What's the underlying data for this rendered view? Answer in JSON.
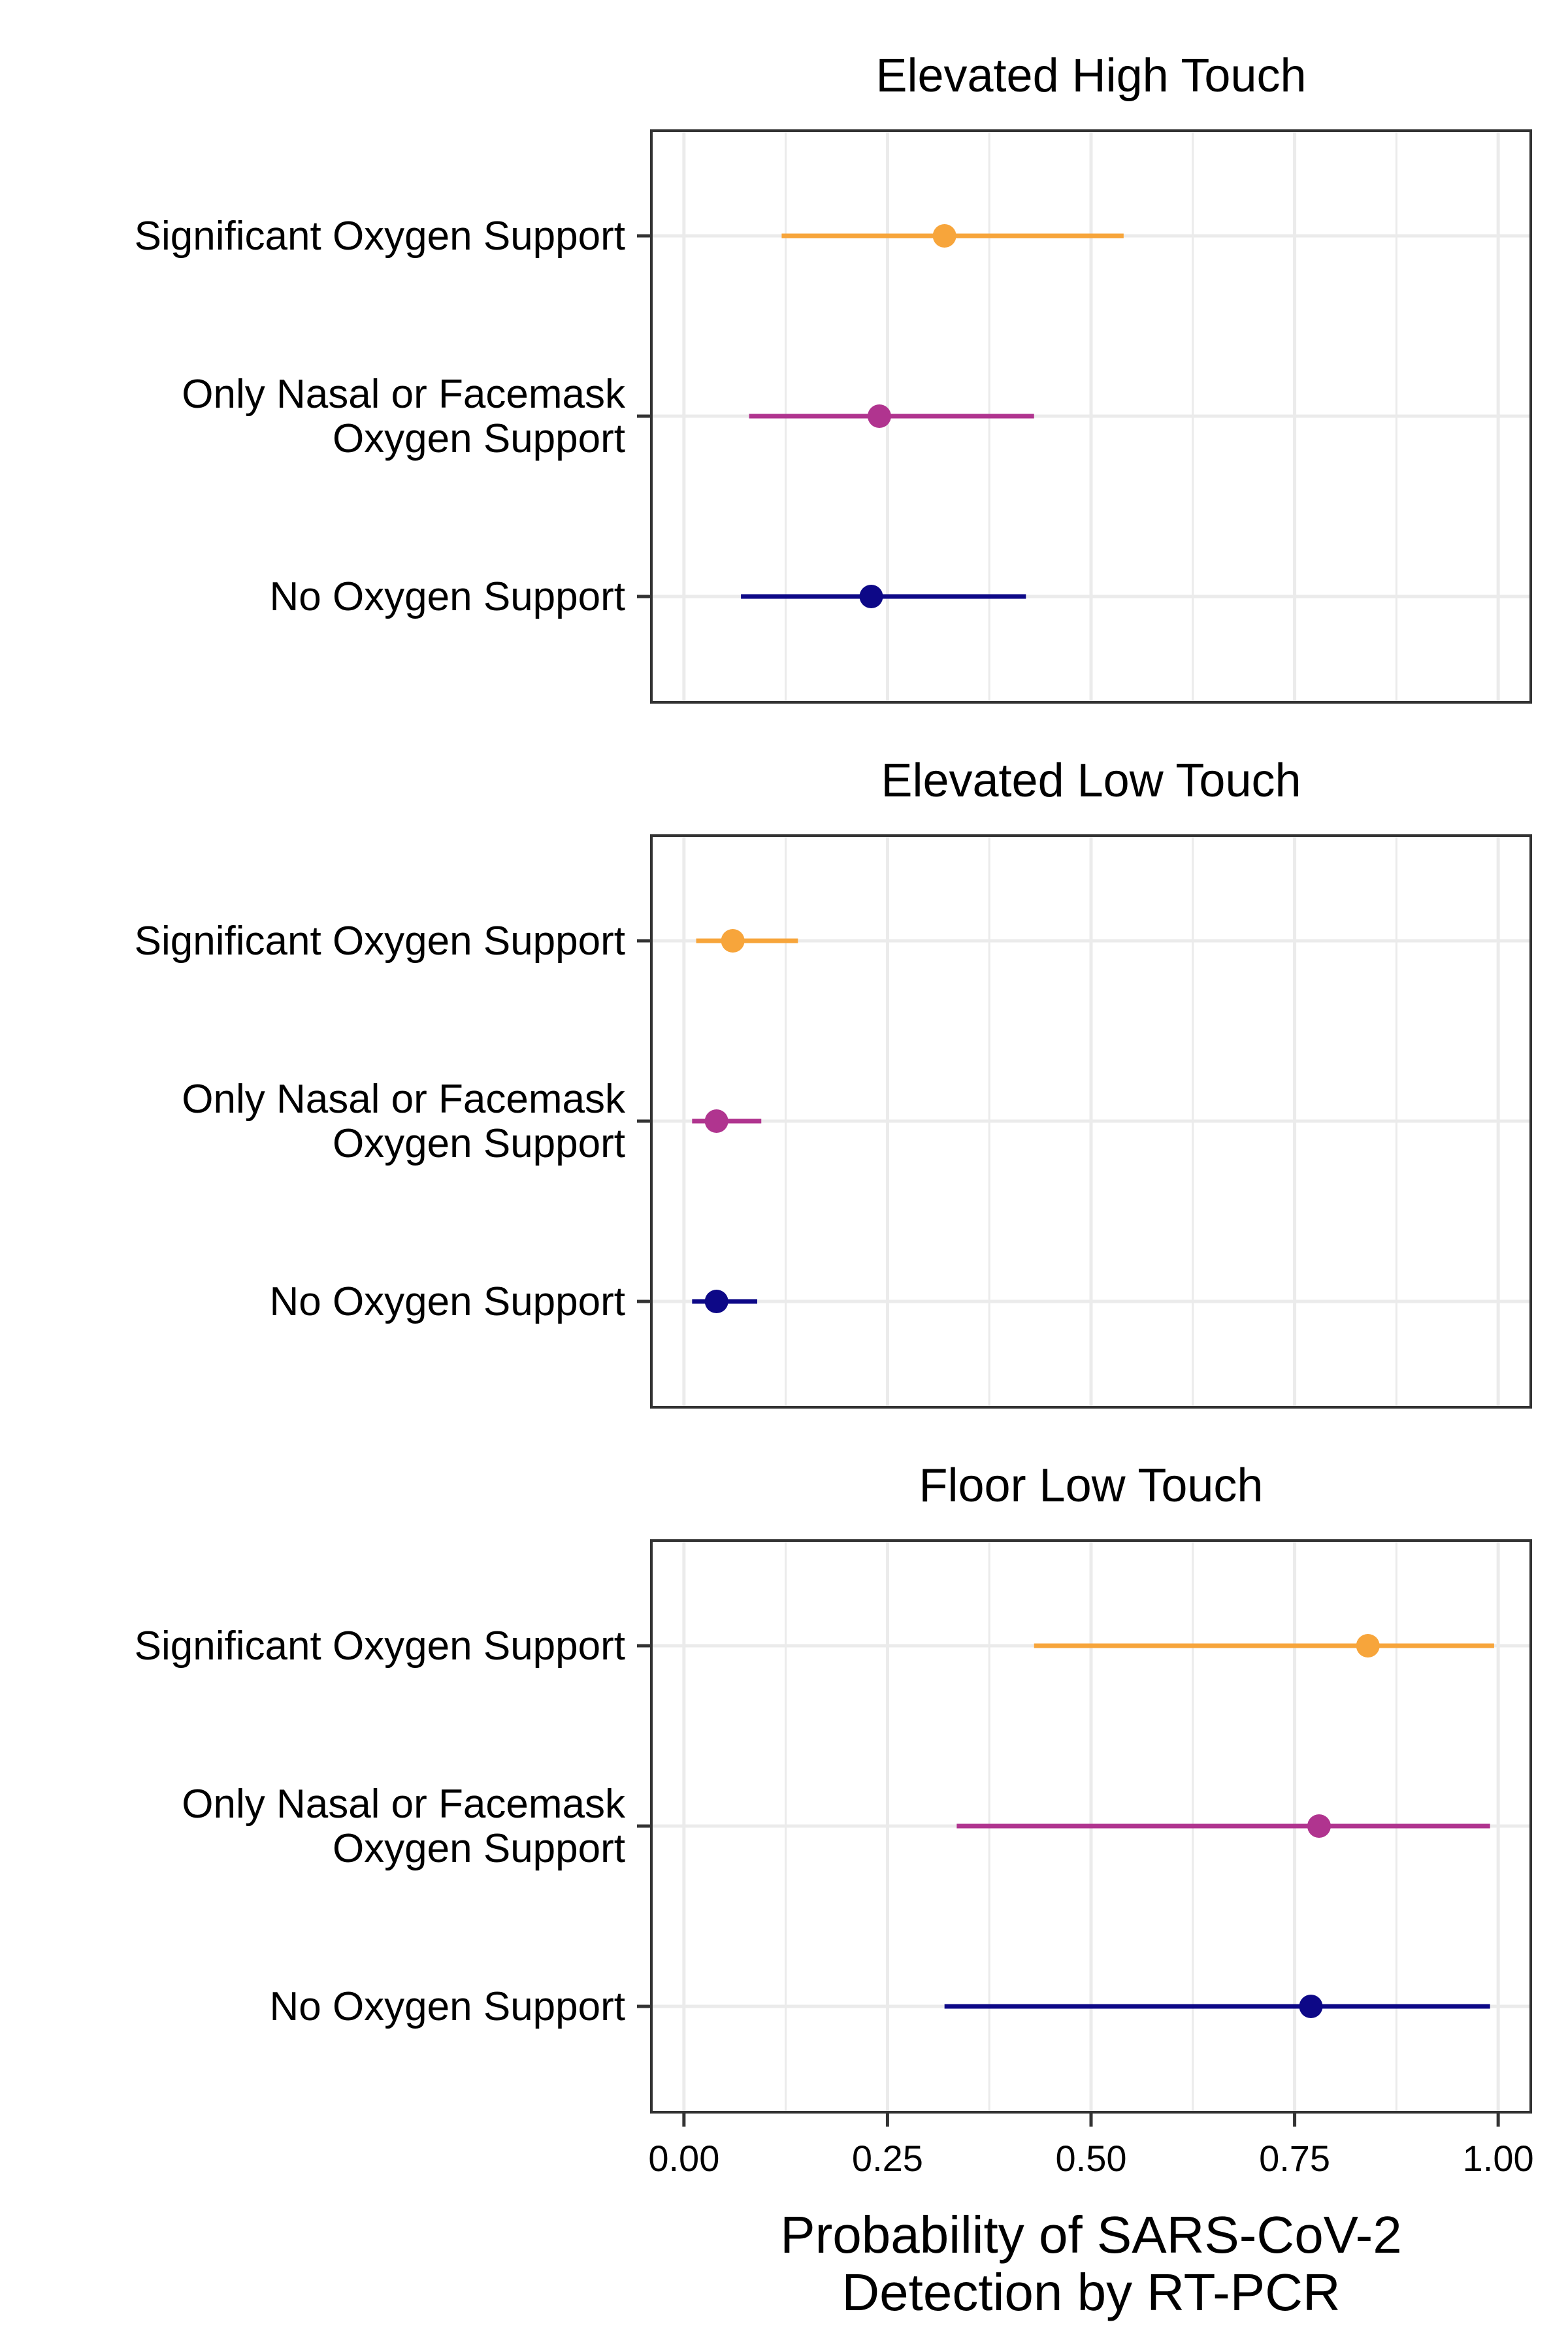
{
  "chart_data": {
    "type": "forest",
    "xlabel_lines": [
      "Probability of SARS-CoV-2",
      "Detection by RT-PCR"
    ],
    "xlim": [
      -0.04,
      1.04
    ],
    "xticks": [
      0,
      0.25,
      0.5,
      0.75,
      1
    ],
    "xtick_labels": [
      "0.00",
      "0.25",
      "0.50",
      "0.75",
      "1.00"
    ],
    "grid": true,
    "categories": [
      {
        "lines": [
          "Significant Oxygen Support"
        ],
        "color": "#f7a53b"
      },
      {
        "lines": [
          "Only Nasal or Facemask",
          "Oxygen Support"
        ],
        "color": "#b0348f"
      },
      {
        "lines": [
          "No Oxygen Support"
        ],
        "color": "#0d0887"
      }
    ],
    "panels": [
      {
        "title": "Elevated High Touch",
        "points": [
          {
            "estimate": 0.32,
            "low": 0.12,
            "high": 0.54
          },
          {
            "estimate": 0.24,
            "low": 0.08,
            "high": 0.43
          },
          {
            "estimate": 0.23,
            "low": 0.07,
            "high": 0.42
          }
        ]
      },
      {
        "title": "Elevated Low Touch",
        "points": [
          {
            "estimate": 0.06,
            "low": 0.015,
            "high": 0.14
          },
          {
            "estimate": 0.04,
            "low": 0.01,
            "high": 0.095
          },
          {
            "estimate": 0.04,
            "low": 0.01,
            "high": 0.09
          }
        ]
      },
      {
        "title": "Floor Low Touch",
        "points": [
          {
            "estimate": 0.84,
            "low": 0.43,
            "high": 0.995
          },
          {
            "estimate": 0.78,
            "low": 0.335,
            "high": 0.99
          },
          {
            "estimate": 0.77,
            "low": 0.32,
            "high": 0.99
          }
        ]
      }
    ]
  }
}
